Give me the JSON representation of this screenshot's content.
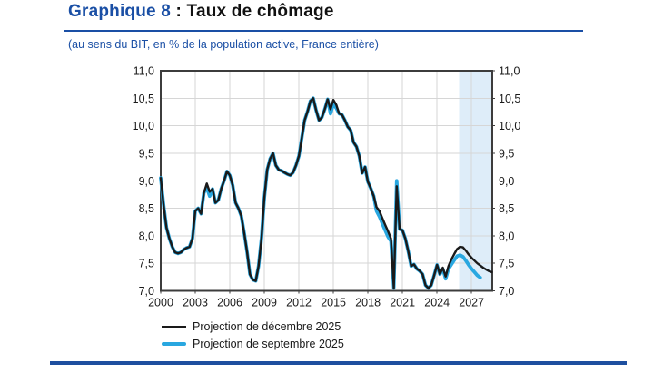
{
  "header": {
    "title_prefix": "Graphique 8",
    "title_rest": " : Taux de chômage",
    "subtitle": "(au sens du BIT, en % de la population active, France entière)",
    "title_color": "#1a4fa5"
  },
  "footer": {
    "bar_color": "#1e4f9f"
  },
  "chart_data": {
    "type": "line",
    "title": "Taux de chômage (au sens du BIT, en % de la population active, France entière)",
    "unit": "%",
    "x_start": 2000.0,
    "x_step": 0.25,
    "xlim": [
      2000,
      2028.8
    ],
    "ylim": [
      7.0,
      11.0
    ],
    "grid": true,
    "grid_color": "#d6d6d6",
    "frame_color": "#3c3c3c",
    "label_color": "#1a1a1a",
    "x_ticks": [
      2000,
      2003,
      2006,
      2009,
      2012,
      2015,
      2018,
      2021,
      2024,
      2027
    ],
    "y_ticks": [
      {
        "v": 11.0,
        "label": "11,0"
      },
      {
        "v": 10.5,
        "label": "10,5"
      },
      {
        "v": 10.0,
        "label": "10,0"
      },
      {
        "v": 9.5,
        "label": "9,5"
      },
      {
        "v": 9.0,
        "label": "9,0"
      },
      {
        "v": 8.5,
        "label": "8,5"
      },
      {
        "v": 8.0,
        "label": "8,0"
      },
      {
        "v": 7.5,
        "label": "7,5"
      },
      {
        "v": 7.0,
        "label": "7,0"
      }
    ],
    "projection_shading": {
      "from": 2025.92,
      "to": 2028.8,
      "color": "#deedf9"
    },
    "legend_position": "bottom-left",
    "series": [
      {
        "name": "Projection de décembre 2025",
        "color": "#1a1a1a",
        "width": 2.4,
        "values": [
          9.05,
          8.55,
          8.15,
          7.95,
          7.8,
          7.7,
          7.68,
          7.7,
          7.75,
          7.78,
          7.8,
          7.95,
          8.45,
          8.5,
          8.4,
          8.78,
          8.95,
          8.8,
          8.85,
          8.6,
          8.65,
          8.85,
          9.0,
          9.17,
          9.1,
          8.92,
          8.6,
          8.5,
          8.36,
          8.05,
          7.7,
          7.3,
          7.2,
          7.18,
          7.45,
          7.95,
          8.7,
          9.2,
          9.4,
          9.5,
          9.28,
          9.2,
          9.18,
          9.15,
          9.12,
          9.1,
          9.15,
          9.28,
          9.45,
          9.78,
          10.1,
          10.26,
          10.45,
          10.5,
          10.28,
          10.1,
          10.15,
          10.3,
          10.48,
          10.3,
          10.47,
          10.38,
          10.22,
          10.2,
          10.1,
          9.98,
          9.92,
          9.7,
          9.62,
          9.45,
          9.14,
          9.25,
          8.98,
          8.86,
          8.72,
          8.52,
          8.45,
          8.32,
          8.2,
          8.08,
          7.95,
          7.05,
          8.9,
          8.12,
          8.1,
          7.95,
          7.72,
          7.45,
          7.48,
          7.4,
          7.36,
          7.3,
          7.1,
          7.05,
          7.1,
          7.28,
          7.47,
          7.3,
          7.42,
          7.26,
          7.45,
          7.57,
          7.67,
          7.76,
          7.8,
          7.79,
          7.73,
          7.66,
          7.6,
          7.55,
          7.5,
          7.46,
          7.42,
          7.39,
          7.36,
          7.34
        ]
      },
      {
        "name": "Projection de septembre 2025",
        "color": "#29a7e0",
        "width": 3.8,
        "values": [
          9.05,
          8.55,
          8.15,
          7.95,
          7.8,
          7.7,
          7.68,
          7.7,
          7.75,
          7.78,
          7.8,
          7.95,
          8.45,
          8.5,
          8.4,
          8.78,
          8.87,
          8.72,
          8.85,
          8.6,
          8.65,
          8.85,
          9.0,
          9.17,
          9.1,
          8.92,
          8.6,
          8.5,
          8.36,
          8.05,
          7.7,
          7.3,
          7.2,
          7.18,
          7.45,
          7.95,
          8.7,
          9.2,
          9.4,
          9.5,
          9.28,
          9.2,
          9.18,
          9.15,
          9.12,
          9.1,
          9.15,
          9.28,
          9.45,
          9.78,
          10.1,
          10.26,
          10.45,
          10.5,
          10.28,
          10.1,
          10.15,
          10.3,
          10.48,
          10.22,
          10.4,
          10.32,
          10.22,
          10.2,
          10.1,
          9.98,
          9.92,
          9.7,
          9.62,
          9.45,
          9.14,
          9.25,
          8.98,
          8.86,
          8.72,
          8.45,
          8.35,
          8.22,
          8.1,
          7.98,
          7.9,
          7.05,
          9.0,
          8.12,
          8.1,
          7.95,
          7.72,
          7.45,
          7.48,
          7.4,
          7.36,
          7.3,
          7.1,
          7.05,
          7.1,
          7.28,
          7.47,
          7.3,
          7.4,
          7.22,
          7.4,
          7.48,
          7.56,
          7.63,
          7.65,
          7.62,
          7.55,
          7.47,
          7.4,
          7.34,
          7.28,
          7.24
        ]
      }
    ]
  }
}
